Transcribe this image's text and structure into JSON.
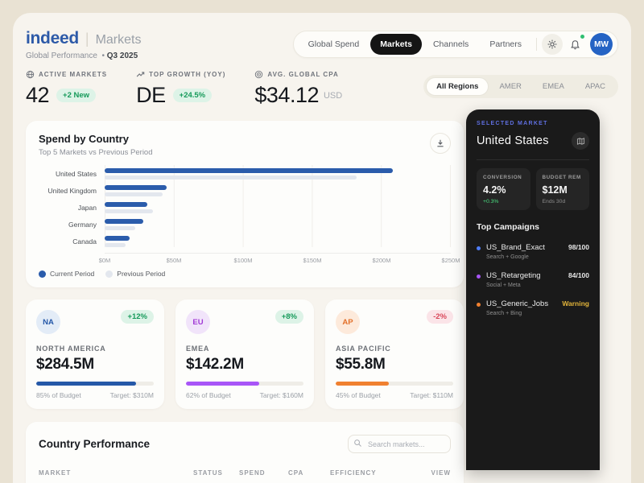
{
  "header": {
    "brand": "indeed",
    "product": "Markets",
    "subtitle": "Global Performance",
    "period": "Q3 2025",
    "nav": [
      {
        "label": "Global Spend",
        "active": false
      },
      {
        "label": "Markets",
        "active": true
      },
      {
        "label": "Channels",
        "active": false
      },
      {
        "label": "Partners",
        "active": false
      }
    ],
    "avatar_initials": "MW",
    "notification_dot": true
  },
  "kpis": [
    {
      "icon": "globe-icon",
      "label": "ACTIVE MARKETS",
      "value": "42",
      "badge": "+2 New",
      "badge_type": "positive"
    },
    {
      "icon": "trend-up-icon",
      "label": "TOP GROWTH (YOY)",
      "value": "DE",
      "badge": "+24.5%",
      "badge_type": "positive"
    },
    {
      "icon": "target-icon",
      "label": "AVG. GLOBAL CPA",
      "value": "$34.12",
      "unit": "USD"
    }
  ],
  "region_tabs": {
    "items": [
      "All Regions",
      "AMER",
      "EMEA",
      "APAC"
    ],
    "active_index": 0
  },
  "chart_data": {
    "type": "bar",
    "orientation": "horizontal",
    "title": "Spend by Country",
    "subtitle": "Top 5 Markets vs Previous Period",
    "categories": [
      "United States",
      "United Kingdom",
      "Japan",
      "Germany",
      "Canada"
    ],
    "series": [
      {
        "name": "Current Period",
        "color": "#2b5cab",
        "values": [
          208,
          45,
          31,
          28,
          18
        ]
      },
      {
        "name": "Previous Period",
        "color": "#e3e7ee",
        "values": [
          182,
          42,
          35,
          22,
          15
        ]
      }
    ],
    "unit": "$M",
    "xlim": [
      0,
      250
    ],
    "x_ticks": [
      "$0M",
      "$50M",
      "$100M",
      "$150M",
      "$200M",
      "$250M"
    ],
    "grid": true,
    "legend_position": "bottom"
  },
  "region_cards": [
    {
      "abbr": "NA",
      "abbr_bg": "#e3ecf7",
      "abbr_fg": "#2558a8",
      "name": "NORTH AMERICA",
      "value": "$284.5M",
      "change": "+12%",
      "change_type": "positive",
      "progress_pct": 85,
      "progress_color": "#2558a8",
      "progress_label": "85% of Budget",
      "target_label": "Target: $310M"
    },
    {
      "abbr": "EU",
      "abbr_bg": "#f1e4fa",
      "abbr_fg": "#a23bd6",
      "name": "EMEA",
      "value": "$142.2M",
      "change": "+8%",
      "change_type": "positive",
      "progress_pct": 62,
      "progress_color": "#a855f7",
      "progress_label": "62% of Budget",
      "target_label": "Target: $160M"
    },
    {
      "abbr": "AP",
      "abbr_bg": "#fdeadb",
      "abbr_fg": "#e2702a",
      "name": "ASIA PACIFIC",
      "value": "$55.8M",
      "change": "-2%",
      "change_type": "negative",
      "progress_pct": 45,
      "progress_color": "#f08030",
      "progress_label": "45% of Budget",
      "target_label": "Target: $110M"
    }
  ],
  "country_performance": {
    "title": "Country Performance",
    "search_placeholder": "Search markets...",
    "columns": [
      "MARKET",
      "STATUS",
      "SPEND",
      "CPA",
      "EFFICIENCY",
      "VIEW"
    ]
  },
  "side_panel": {
    "label": "SELECTED MARKET",
    "market": "United States",
    "stats": [
      {
        "label": "CONVERSION",
        "value": "4.2%",
        "sub": "+0.3%",
        "sub_type": "positive"
      },
      {
        "label": "BUDGET REM",
        "value": "$12M",
        "sub": "Ends 30d",
        "sub_type": "muted"
      }
    ],
    "campaigns_title": "Top Campaigns",
    "campaigns": [
      {
        "name": "US_Brand_Exact",
        "channel": "Search + Google",
        "dot_color": "#4f7df9",
        "score": "98/100",
        "score_type": "normal"
      },
      {
        "name": "US_Retargeting",
        "channel": "Social + Meta",
        "dot_color": "#a855f7",
        "score": "84/100",
        "score_type": "normal"
      },
      {
        "name": "US_Generic_Jobs",
        "channel": "Search + Bing",
        "dot_color": "#f08030",
        "score": "Warning",
        "score_type": "warning"
      }
    ]
  },
  "colors": {
    "page_bg": "#e9e2d3",
    "surface": "#f7f4ee",
    "card_bg": "#fdfdfb",
    "brand_blue": "#2d5aa8",
    "bar_current": "#2b5cab",
    "bar_previous": "#e3e7ee",
    "positive_green": "#169a5a",
    "negative_red": "#d9475a",
    "warning_yellow": "#e2b43a",
    "panel_bg": "#1a1a1a",
    "selected_label_blue": "#5f6fe0",
    "avatar_blue": "#2563c4"
  }
}
